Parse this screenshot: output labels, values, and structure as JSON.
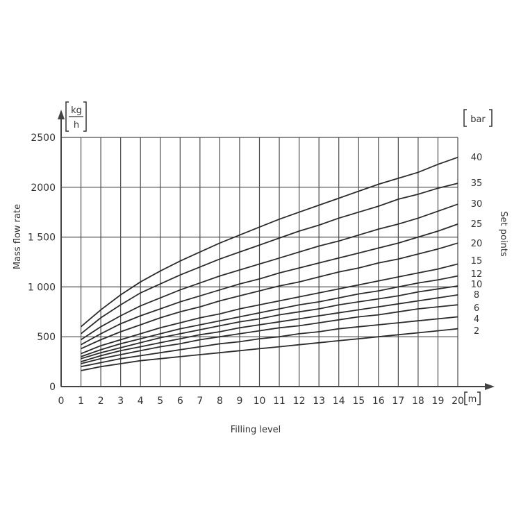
{
  "chart_data": {
    "type": "line",
    "title": "",
    "xlabel": "Filling level",
    "ylabel": "Mass flow rate",
    "x_unit": "m",
    "y_unit_numerator": "kg",
    "y_unit_denominator": "h",
    "series_unit": "bar",
    "series_axis_label": "Set points",
    "xlim": [
      0,
      20
    ],
    "ylim": [
      0,
      2500
    ],
    "x_ticks": [
      "0",
      "1",
      "2",
      "3",
      "4",
      "5",
      "6",
      "7",
      "8",
      "9",
      "10",
      "11",
      "12",
      "13",
      "14",
      "15",
      "16",
      "17",
      "18",
      "19",
      "20"
    ],
    "y_ticks": [
      "0",
      "500",
      "1 000",
      "1 500",
      "2000",
      "2500"
    ],
    "y_tick_values": [
      0,
      500,
      1000,
      1500,
      2000,
      2500
    ],
    "grid": true,
    "x": [
      1,
      2,
      3,
      4,
      5,
      6,
      7,
      8,
      9,
      10,
      11,
      12,
      13,
      14,
      15,
      16,
      17,
      18,
      19,
      20
    ],
    "series": [
      {
        "name": "40",
        "values": [
          600,
          770,
          920,
          1050,
          1160,
          1260,
          1350,
          1440,
          1520,
          1600,
          1680,
          1750,
          1820,
          1890,
          1960,
          2030,
          2090,
          2150,
          2230,
          2300
        ]
      },
      {
        "name": "35",
        "values": [
          530,
          690,
          820,
          940,
          1030,
          1120,
          1200,
          1280,
          1350,
          1420,
          1490,
          1560,
          1620,
          1690,
          1750,
          1810,
          1880,
          1930,
          1990,
          2040
        ]
      },
      {
        "name": "30",
        "values": [
          470,
          600,
          710,
          810,
          890,
          970,
          1040,
          1110,
          1170,
          1230,
          1290,
          1350,
          1410,
          1460,
          1520,
          1580,
          1630,
          1690,
          1760,
          1830
        ]
      },
      {
        "name": "25",
        "values": [
          420,
          530,
          630,
          710,
          780,
          850,
          910,
          970,
          1030,
          1080,
          1140,
          1190,
          1240,
          1290,
          1340,
          1390,
          1440,
          1500,
          1560,
          1630
        ]
      },
      {
        "name": "20",
        "values": [
          380,
          470,
          550,
          620,
          690,
          750,
          800,
          860,
          910,
          960,
          1010,
          1050,
          1100,
          1150,
          1190,
          1240,
          1280,
          1330,
          1380,
          1440
        ]
      },
      {
        "name": "15",
        "values": [
          330,
          410,
          470,
          530,
          590,
          640,
          690,
          730,
          780,
          820,
          860,
          900,
          940,
          980,
          1020,
          1060,
          1100,
          1140,
          1180,
          1230
        ]
      },
      {
        "name": "12",
        "values": [
          300,
          370,
          430,
          480,
          530,
          580,
          620,
          660,
          700,
          740,
          780,
          820,
          850,
          890,
          930,
          960,
          1000,
          1040,
          1070,
          1110
        ]
      },
      {
        "name": "10",
        "values": [
          280,
          340,
          390,
          440,
          490,
          530,
          570,
          610,
          650,
          680,
          720,
          750,
          780,
          820,
          850,
          880,
          910,
          950,
          980,
          1010
        ]
      },
      {
        "name": "8",
        "values": [
          250,
          310,
          360,
          400,
          440,
          480,
          520,
          550,
          590,
          620,
          650,
          680,
          710,
          740,
          770,
          800,
          830,
          860,
          890,
          920
        ]
      },
      {
        "name": "6",
        "values": [
          230,
          280,
          320,
          360,
          400,
          430,
          470,
          500,
          530,
          560,
          590,
          610,
          640,
          670,
          700,
          720,
          750,
          780,
          800,
          820
        ]
      },
      {
        "name": "4",
        "values": [
          200,
          240,
          280,
          310,
          340,
          370,
          400,
          430,
          450,
          480,
          500,
          530,
          550,
          580,
          600,
          620,
          640,
          660,
          680,
          700
        ]
      },
      {
        "name": "2",
        "values": [
          160,
          200,
          230,
          260,
          280,
          300,
          320,
          340,
          360,
          380,
          400,
          420,
          440,
          460,
          480,
          500,
          520,
          540,
          560,
          580
        ]
      }
    ]
  }
}
